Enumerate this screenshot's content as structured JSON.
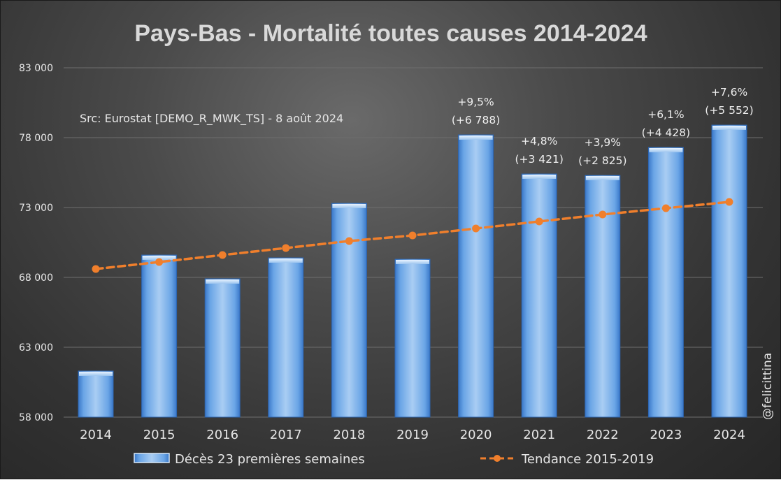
{
  "chart_data": {
    "type": "bar",
    "title": "Pays-Bas - Mortalité toutes causes 2014-2024",
    "subtitle": "Src: Eurostat [DEMO_R_MWK_TS] - 8 août 2024",
    "categories": [
      "2014",
      "2015",
      "2016",
      "2017",
      "2018",
      "2019",
      "2020",
      "2021",
      "2022",
      "2023",
      "2024"
    ],
    "series": [
      {
        "name": "Décès 23 premières semaines",
        "type": "bar",
        "values": [
          61300,
          69600,
          67900,
          69400,
          73300,
          69300,
          78200,
          75400,
          75300,
          77300,
          78900
        ]
      },
      {
        "name": "Tendance 2015-2019",
        "type": "line",
        "style": "dashed",
        "values": [
          68600,
          69100,
          69600,
          70100,
          70600,
          71000,
          71500,
          72000,
          72500,
          72950,
          73400
        ]
      }
    ],
    "annotations": [
      {
        "category": "2020",
        "line1": "+9,5%",
        "line2": "(+6 788)"
      },
      {
        "category": "2021",
        "line1": "+4,8%",
        "line2": "(+3 421)"
      },
      {
        "category": "2022",
        "line1": "+3,9%",
        "line2": "(+2 825)"
      },
      {
        "category": "2023",
        "line1": "+6,1%",
        "line2": "(+4 428)"
      },
      {
        "category": "2024",
        "line1": "+7,6%",
        "line2": "(+5 552)"
      }
    ],
    "ylim": [
      58000,
      83000
    ],
    "yticks": [
      58000,
      63000,
      68000,
      73000,
      78000,
      83000
    ],
    "ytick_labels": [
      "58 000",
      "63 000",
      "68 000",
      "73 000",
      "78 000",
      "83 000"
    ],
    "xlabel": "",
    "ylabel": "",
    "grid": true,
    "legend_position": "bottom"
  },
  "credit": "@felicittina",
  "colors": {
    "bar_top": "#b8d6f5",
    "bar_bottom": "#3f7fd0",
    "trend": "#f07f2c",
    "title": "#d9d9d9",
    "text": "#e6e6e6"
  }
}
